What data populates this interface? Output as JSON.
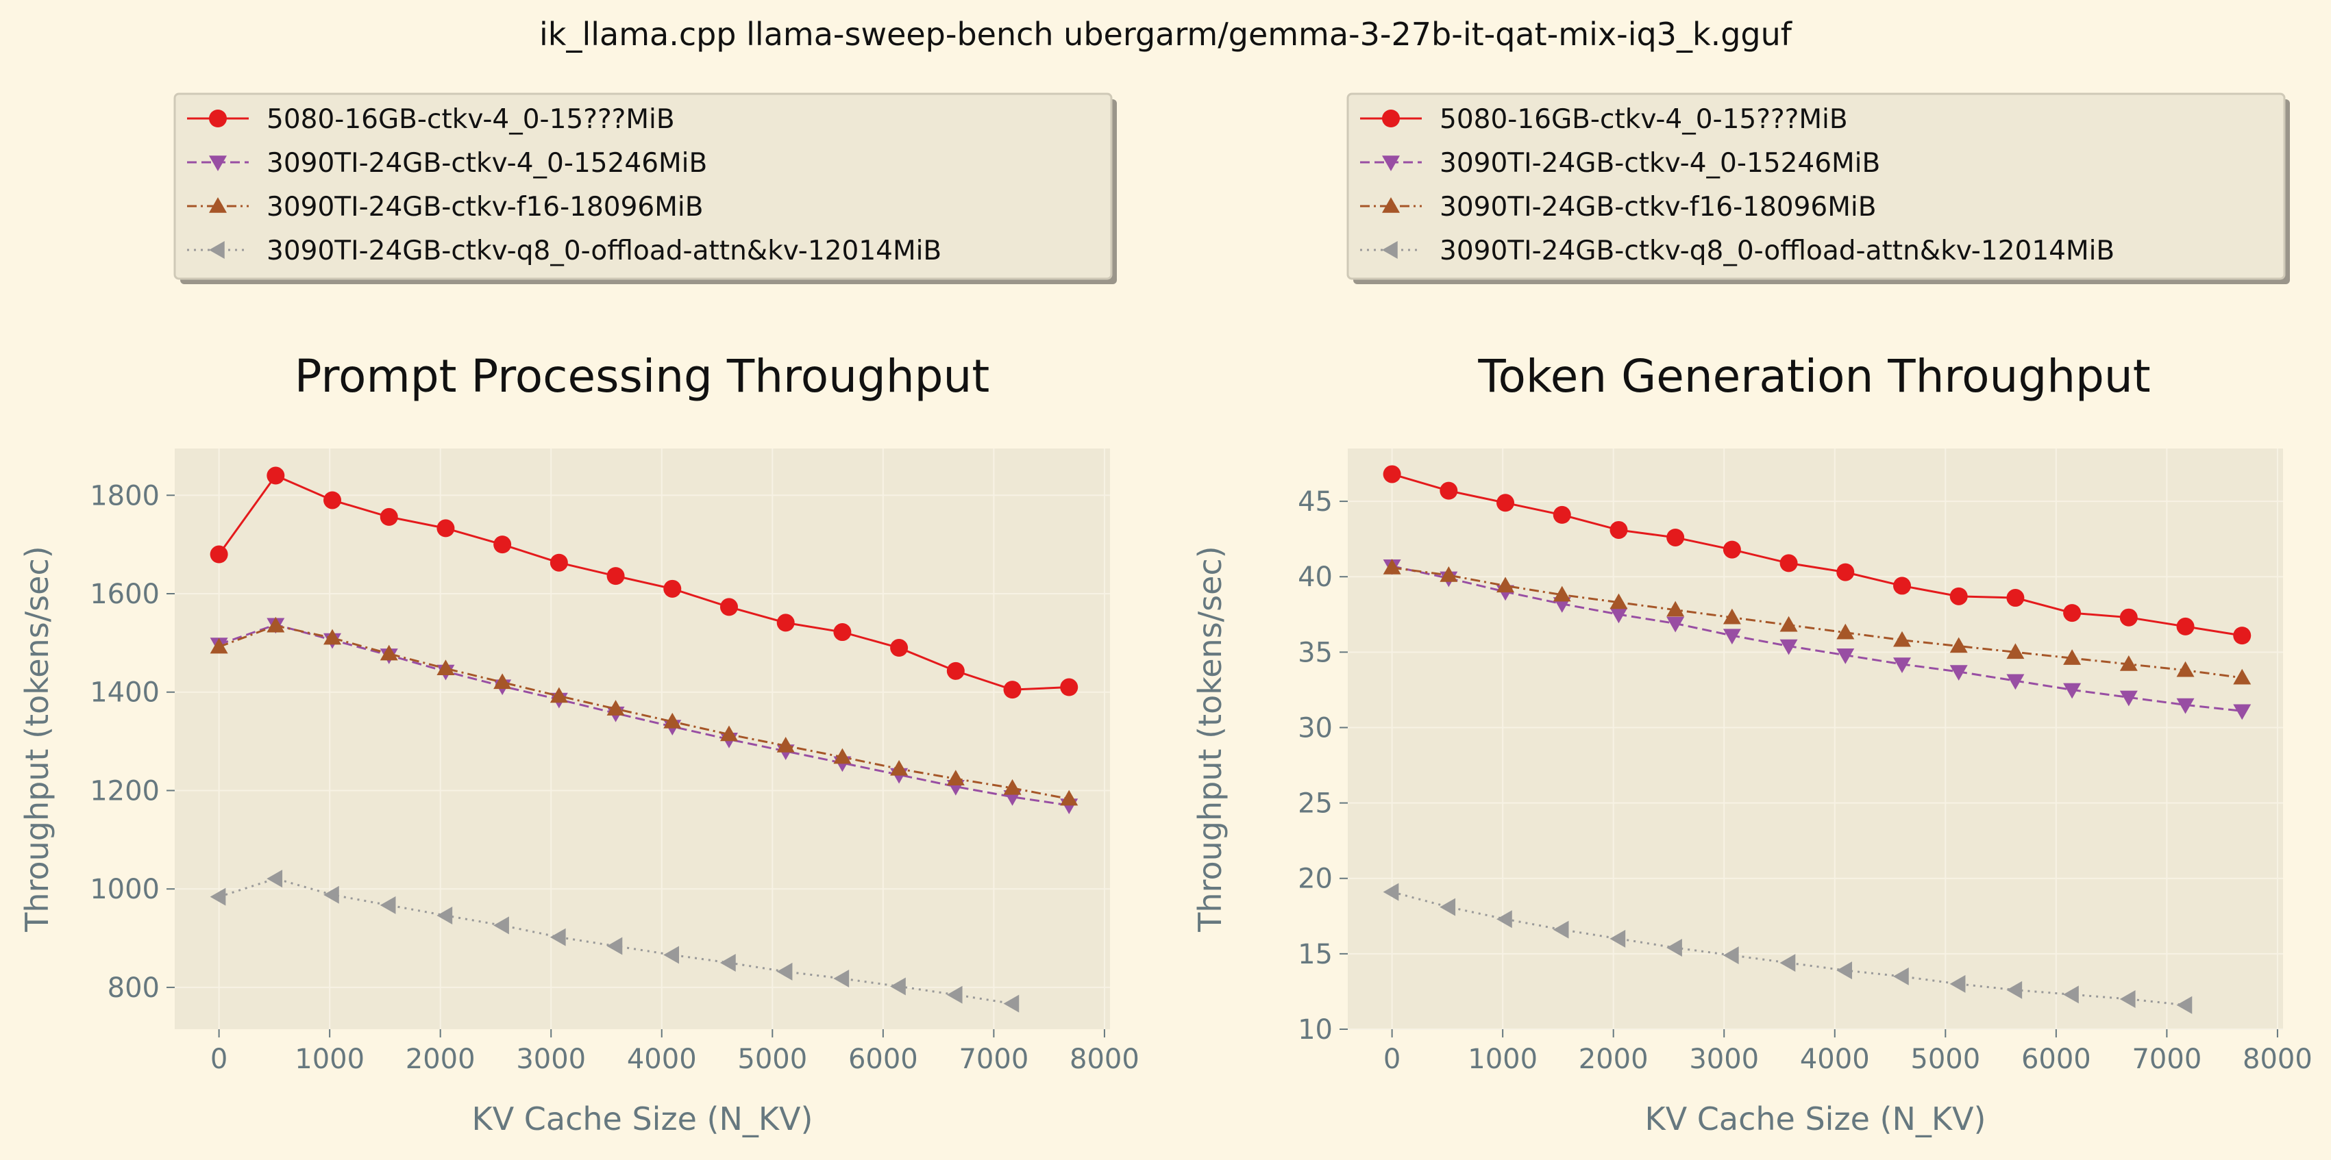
{
  "suptitle": "ik_llama.cpp llama-sweep-bench ubergarm/gemma-3-27b-it-qat-mix-iq3_k.gguf",
  "colors": {
    "background": "#fdf6e3",
    "axes_face": "#eee8d5",
    "legend_face": "#eee8d5",
    "legend_edge": "#cfc9b7",
    "grid": "#f7f2e4",
    "tick_text": "#66787f",
    "series": [
      "#e41a1c",
      "#984ea3",
      "#a65628",
      "#999999"
    ]
  },
  "chart_data": [
    {
      "type": "line",
      "title": "Prompt Processing Throughput",
      "xlabel": "KV Cache Size (N_KV)",
      "ylabel": "Throughput (tokens/sec)",
      "xlim": [
        -400,
        8050
      ],
      "ylim": [
        715,
        1895
      ],
      "xticks": [
        0,
        1000,
        2000,
        3000,
        4000,
        5000,
        6000,
        7000,
        8000
      ],
      "yticks": [
        800,
        1000,
        1200,
        1400,
        1600,
        1800
      ],
      "grid": true,
      "legend_position": "above plot",
      "series": [
        {
          "name": "5080-16GB-ctkv-4_0-15???MiB",
          "marker": "circle",
          "linestyle": "solid",
          "x": [
            0,
            512,
            1024,
            1536,
            2048,
            2560,
            3072,
            3584,
            4096,
            4608,
            5120,
            5632,
            6144,
            6656,
            7168,
            7680
          ],
          "y": [
            1680,
            1840,
            1790,
            1756,
            1733,
            1700,
            1663,
            1636,
            1610,
            1573,
            1541,
            1522,
            1490,
            1443,
            1405,
            1410
          ]
        },
        {
          "name": "3090TI-24GB-ctkv-4_0-15246MiB",
          "marker": "triangle-down",
          "linestyle": "dashed",
          "x": [
            0,
            512,
            1024,
            1536,
            2048,
            2560,
            3072,
            3584,
            4096,
            4608,
            5120,
            5632,
            6144,
            6656,
            7168,
            7680
          ],
          "y": [
            1497,
            1537,
            1506,
            1475,
            1442,
            1412,
            1385,
            1357,
            1330,
            1304,
            1280,
            1256,
            1232,
            1208,
            1187,
            1170
          ]
        },
        {
          "name": "3090TI-24GB-ctkv-f16-18096MiB",
          "marker": "triangle-up",
          "linestyle": "dashdot",
          "x": [
            0,
            512,
            1024,
            1536,
            2048,
            2560,
            3072,
            3584,
            4096,
            4608,
            5120,
            5632,
            6144,
            6656,
            7168,
            7680
          ],
          "y": [
            1492,
            1535,
            1510,
            1478,
            1448,
            1420,
            1392,
            1366,
            1340,
            1314,
            1291,
            1268,
            1244,
            1224,
            1205,
            1183
          ]
        },
        {
          "name": "3090TI-24GB-ctkv-q8_0-offload-attn&kv-12014MiB",
          "marker": "triangle-left",
          "linestyle": "dotted",
          "x": [
            0,
            512,
            1024,
            1536,
            2048,
            2560,
            3072,
            3584,
            4096,
            4608,
            5120,
            5632,
            6144,
            6656,
            7168
          ],
          "y": [
            984,
            1021,
            988,
            967,
            946,
            926,
            902,
            884,
            866,
            850,
            832,
            818,
            802,
            785,
            767
          ]
        }
      ]
    },
    {
      "type": "line",
      "title": "Token Generation Throughput",
      "xlabel": "KV Cache Size (N_KV)",
      "ylabel": "Throughput (tokens/sec)",
      "xlim": [
        -400,
        8050
      ],
      "ylim": [
        10,
        48.5
      ],
      "xticks": [
        0,
        1000,
        2000,
        3000,
        4000,
        5000,
        6000,
        7000,
        8000
      ],
      "yticks": [
        10,
        15,
        20,
        25,
        30,
        35,
        40,
        45
      ],
      "grid": true,
      "legend_position": "above plot",
      "series": [
        {
          "name": "5080-16GB-ctkv-4_0-15???MiB",
          "marker": "circle",
          "linestyle": "solid",
          "x": [
            0,
            512,
            1024,
            1536,
            2048,
            2560,
            3072,
            3584,
            4096,
            4608,
            5120,
            5632,
            6144,
            6656,
            7168,
            7680
          ],
          "y": [
            46.8,
            45.7,
            44.9,
            44.1,
            43.1,
            42.6,
            41.8,
            40.9,
            40.3,
            39.4,
            38.7,
            38.6,
            37.6,
            37.3,
            36.7,
            36.1
          ]
        },
        {
          "name": "3090TI-24GB-ctkv-4_0-15246MiB",
          "marker": "triangle-down",
          "linestyle": "dashed",
          "x": [
            0,
            512,
            1024,
            1536,
            2048,
            2560,
            3072,
            3584,
            4096,
            4608,
            5120,
            5632,
            6144,
            6656,
            7168,
            7680
          ],
          "y": [
            40.7,
            39.9,
            39.0,
            38.2,
            37.5,
            36.9,
            36.1,
            35.4,
            34.8,
            34.2,
            33.7,
            33.1,
            32.5,
            32.0,
            31.5,
            31.1
          ]
        },
        {
          "name": "3090TI-24GB-ctkv-f16-18096MiB",
          "marker": "triangle-up",
          "linestyle": "dashdot",
          "x": [
            0,
            512,
            1024,
            1536,
            2048,
            2560,
            3072,
            3584,
            4096,
            4608,
            5120,
            5632,
            6144,
            6656,
            7168,
            7680
          ],
          "y": [
            40.6,
            40.1,
            39.4,
            38.8,
            38.3,
            37.8,
            37.3,
            36.8,
            36.3,
            35.8,
            35.4,
            35.0,
            34.6,
            34.2,
            33.8,
            33.3
          ]
        },
        {
          "name": "3090TI-24GB-ctkv-q8_0-offload-attn&kv-12014MiB",
          "marker": "triangle-left",
          "linestyle": "dotted",
          "x": [
            0,
            512,
            1024,
            1536,
            2048,
            2560,
            3072,
            3584,
            4096,
            4608,
            5120,
            5632,
            6144,
            6656,
            7168
          ],
          "y": [
            19.1,
            18.1,
            17.3,
            16.6,
            16.0,
            15.4,
            14.9,
            14.4,
            13.9,
            13.5,
            13.0,
            12.6,
            12.3,
            12.0,
            11.6
          ]
        }
      ]
    }
  ]
}
